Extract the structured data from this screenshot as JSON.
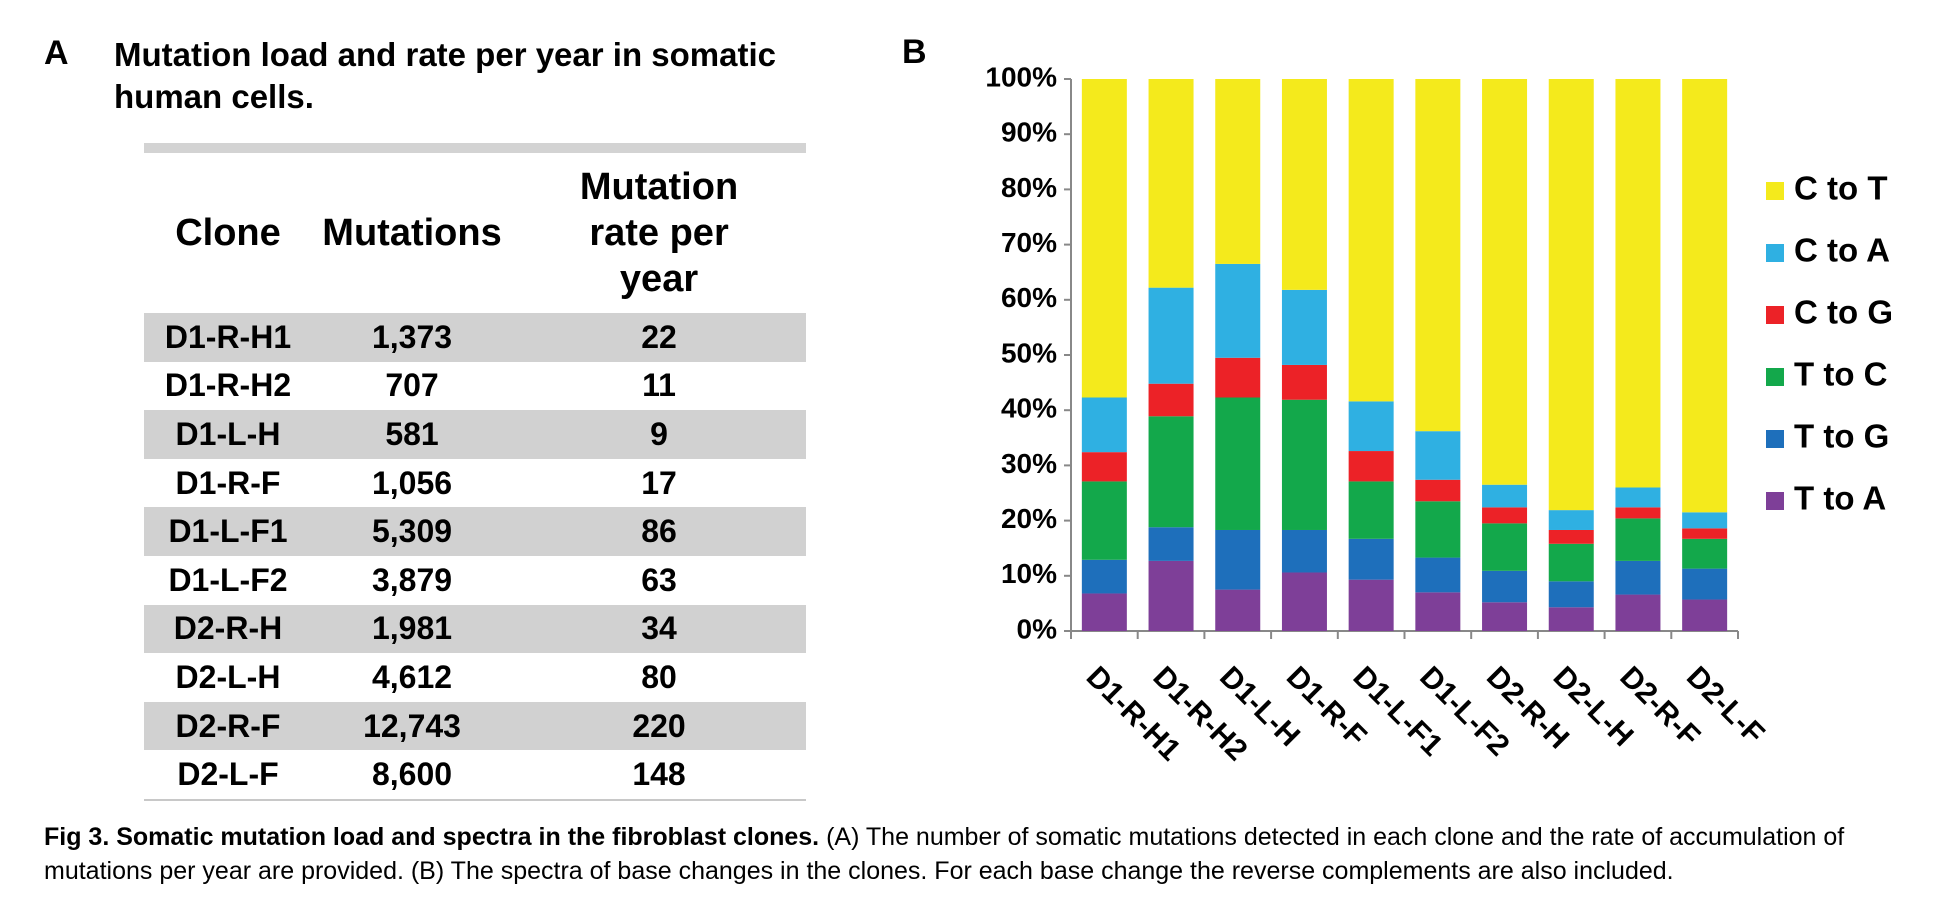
{
  "panel_a": {
    "label": "A",
    "title": "Mutation load and rate per year in somatic human cells."
  },
  "table": {
    "columns": [
      "Clone",
      "Mutations",
      "Mutation rate  per year"
    ],
    "rows": [
      [
        "D1-R-H1",
        "1,373",
        "22"
      ],
      [
        "D1-R-H2",
        "707",
        "11"
      ],
      [
        "D1-L-H",
        "581",
        "9"
      ],
      [
        "D1-R-F",
        "1,056",
        "17"
      ],
      [
        "D1-L-F1",
        "5,309",
        "86"
      ],
      [
        "D1-L-F2",
        "3,879",
        "63"
      ],
      [
        "D2-R-H",
        "1,981",
        "34"
      ],
      [
        "D2-L-H",
        "4,612",
        "80"
      ],
      [
        "D2-R-F",
        "12,743",
        "220"
      ],
      [
        "D2-L-F",
        "8,600",
        "148"
      ]
    ]
  },
  "chart_data": {
    "type": "stacked_bar",
    "panel_label": "B",
    "categories": [
      "D1-R-H1",
      "D1-R-H2",
      "D1-L-H",
      "D1-R-F",
      "D1-L-F1",
      "D1-L-F2",
      "D2-R-H",
      "D2-L-H",
      "D2-R-F",
      "D2-L-F"
    ],
    "series": [
      {
        "name": "C to T",
        "color": "#f4ea1c",
        "values": [
          57.7,
          37.8,
          33.5,
          38.2,
          58.4,
          63.8,
          73.5,
          78.1,
          74.0,
          78.5
        ]
      },
      {
        "name": "C to A",
        "color": "#2fb0e2",
        "values": [
          9.9,
          17.4,
          17.0,
          13.6,
          9.0,
          8.8,
          4.1,
          3.6,
          3.6,
          2.9
        ]
      },
      {
        "name": "C to G",
        "color": "#ec2227",
        "values": [
          5.3,
          5.9,
          7.2,
          6.3,
          5.5,
          3.9,
          2.9,
          2.5,
          2.0,
          1.9
        ]
      },
      {
        "name": "T to C",
        "color": "#13a84b",
        "values": [
          14.2,
          20.1,
          24.0,
          23.6,
          10.4,
          10.2,
          8.6,
          6.8,
          7.7,
          5.4
        ]
      },
      {
        "name": "T to G",
        "color": "#1e6fbb",
        "values": [
          6.1,
          6.1,
          10.8,
          7.7,
          7.4,
          6.3,
          5.7,
          4.7,
          6.1,
          5.6
        ]
      },
      {
        "name": "T to A",
        "color": "#7e3f98",
        "values": [
          6.8,
          12.7,
          7.5,
          10.6,
          9.3,
          7.0,
          5.2,
          4.3,
          6.6,
          5.7
        ]
      }
    ],
    "ylim": [
      0,
      100
    ],
    "yticks": [
      {
        "value": 0,
        "label": "0%"
      },
      {
        "value": 10,
        "label": "10%"
      },
      {
        "value": 20,
        "label": "20%"
      },
      {
        "value": 30,
        "label": "30%"
      },
      {
        "value": 40,
        "label": "40%"
      },
      {
        "value": 50,
        "label": "50%"
      },
      {
        "value": 60,
        "label": "60%"
      },
      {
        "value": 70,
        "label": "70%"
      },
      {
        "value": 80,
        "label": "80%"
      },
      {
        "value": 90,
        "label": "90%"
      },
      {
        "value": 100,
        "label": "100%"
      }
    ],
    "legend": "right"
  },
  "caption": {
    "bold": "Fig 3. Somatic mutation load and spectra in the fibroblast clones.",
    "text": "(A) The number of somatic mutations detected in each clone and the rate of accumulation of mutations per year are provided. (B) The spectra of base changes in the clones. For each base change the reverse complements are also included."
  }
}
